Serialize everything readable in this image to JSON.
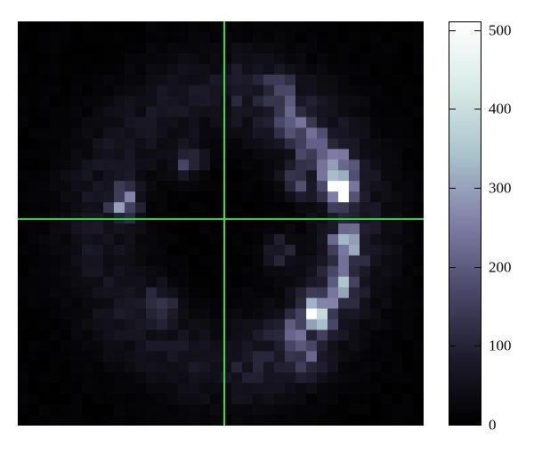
{
  "chart_data": {
    "type": "heatmap",
    "title": "",
    "xlabel": "",
    "ylabel": "",
    "grid": false,
    "colormap": [
      "#000000",
      "#1d1b2a",
      "#4a4868",
      "#807ea6",
      "#a9c1cb",
      "#d6eae6",
      "#ffffff"
    ],
    "colorbar": {
      "range": [
        0,
        510
      ],
      "ticks": [
        "0",
        "100",
        "200",
        "300",
        "400",
        "500"
      ],
      "tick_values": [
        0,
        100,
        200,
        300,
        400,
        500
      ]
    },
    "crosshair": {
      "color": "#33dd44",
      "col": 20.3,
      "row": 19.4
    },
    "rows": 38,
    "cols": 38,
    "blobs": [
      {
        "row": 15.0,
        "col": 29.7,
        "value": 500
      },
      {
        "row": 13.0,
        "col": 29.3,
        "value": 250
      },
      {
        "row": 20.5,
        "col": 30.2,
        "value": 340
      },
      {
        "row": 26.8,
        "col": 27.5,
        "value": 420
      },
      {
        "row": 24.5,
        "col": 29.8,
        "value": 200
      },
      {
        "row": 9.0,
        "col": 25.0,
        "value": 200
      },
      {
        "row": 11.0,
        "col": 27.0,
        "value": 170
      },
      {
        "row": 16.5,
        "col": 9.5,
        "value": 210
      },
      {
        "row": 26.0,
        "col": 13.0,
        "value": 130
      },
      {
        "row": 12.5,
        "col": 15.5,
        "value": 140
      },
      {
        "row": 14.5,
        "col": 25.5,
        "value": 130
      },
      {
        "row": 29.0,
        "col": 25.0,
        "value": 150
      },
      {
        "row": 31.5,
        "col": 26.5,
        "value": 140
      },
      {
        "row": 21.0,
        "col": 24.0,
        "value": 110
      },
      {
        "row": 6.0,
        "col": 24.0,
        "value": 100
      }
    ],
    "background_ring": {
      "center_row": 19,
      "center_col": 19,
      "radius_rows": 15,
      "radius_cols": 14,
      "value": 55
    }
  }
}
